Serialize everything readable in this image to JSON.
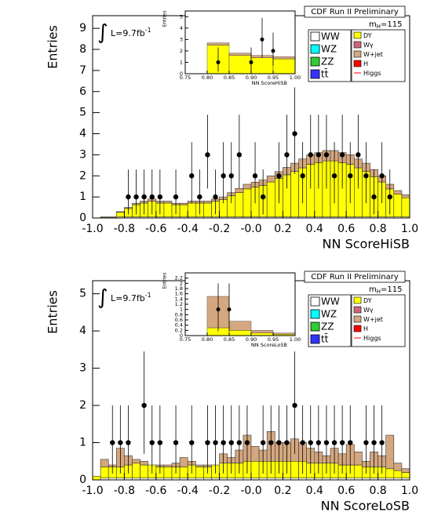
{
  "chart_data": [
    {
      "type": "histogram",
      "title": "CDF Run II Preliminary",
      "mass_label": {
        "base": "m",
        "sub": "H",
        "rest": "=115"
      },
      "lumi_label": {
        "symbol": "∫",
        "base": "L=9.7fb",
        "sup": "-1"
      },
      "x_label": "NN ScoreHiSB",
      "y_label": "Entries",
      "bins": [
        -1,
        -0.95,
        -0.9,
        -0.85,
        -0.8,
        -0.75,
        -0.7,
        -0.65,
        -0.6,
        -0.55,
        -0.5,
        -0.45,
        -0.4,
        -0.35,
        -0.3,
        -0.25,
        -0.2,
        -0.15,
        -0.1,
        -0.05,
        0,
        0.05,
        0.1,
        0.15,
        0.2,
        0.25,
        0.3,
        0.35,
        0.4,
        0.45,
        0.5,
        0.55,
        0.6,
        0.65,
        0.7,
        0.75,
        0.8,
        0.85,
        0.9,
        0.95,
        1
      ],
      "xlim": [
        -1,
        1
      ],
      "ylim": [
        0,
        9.6
      ],
      "xticks": [
        {
          "value": -1,
          "label": "-1.0"
        },
        -0.8,
        -0.6,
        -0.4,
        -0.2,
        {
          "value": 0,
          "label": "-0.0"
        },
        0.2,
        0.4,
        0.6,
        0.8,
        {
          "value": 1,
          "label": "1.0"
        }
      ],
      "yticks": [
        0,
        1,
        2,
        3,
        4,
        5,
        6,
        7,
        8,
        9
      ],
      "series": [
        {
          "name": "WW",
          "color": "#ffffff",
          "values": [
            0,
            0,
            0,
            0.05,
            0.05,
            0.05,
            0.05,
            0.05,
            0.05,
            0.05,
            0.05,
            0.05,
            0.05,
            0.05,
            0.05,
            0.05,
            0.05,
            0.05,
            0.05,
            0.05,
            0.05,
            0.05,
            0.05,
            0.05,
            0.05,
            0.05,
            0.05,
            0.05,
            0.05,
            0.05,
            0.05,
            0.05,
            0.05,
            0.05,
            0.05,
            0.05,
            0.05,
            0.05,
            0.05,
            0.05
          ]
        },
        {
          "name": "WZ",
          "color": "#00ffff"
        },
        {
          "name": "ZZ",
          "color": "#33cc33"
        },
        {
          "name": "tt̄",
          "color": "#3333ff"
        },
        {
          "name": "DY",
          "color": "#ffff00",
          "values": [
            0,
            0.04,
            0.04,
            0.22,
            0.4,
            0.58,
            0.66,
            0.74,
            0.66,
            0.66,
            0.58,
            0.58,
            0.66,
            0.66,
            0.66,
            0.74,
            0.83,
            1.0,
            1.16,
            1.33,
            1.41,
            1.5,
            1.66,
            1.83,
            2.0,
            2.16,
            2.33,
            2.5,
            2.58,
            2.66,
            2.66,
            2.58,
            2.5,
            2.33,
            2.16,
            1.91,
            1.66,
            1.33,
            1.08,
            0.91
          ]
        },
        {
          "name": "Wγ",
          "color": "#cc6677"
        },
        {
          "name": "W+jet",
          "color": "#d4a77f",
          "values": [
            0,
            0.01,
            0.01,
            0.03,
            0.05,
            0.07,
            0.09,
            0.11,
            0.09,
            0.09,
            0.07,
            0.07,
            0.09,
            0.09,
            0.09,
            0.11,
            0.12,
            0.15,
            0.19,
            0.22,
            0.24,
            0.25,
            0.29,
            0.32,
            0.35,
            0.39,
            0.42,
            0.45,
            0.47,
            0.49,
            0.49,
            0.47,
            0.45,
            0.42,
            0.39,
            0.34,
            0.29,
            0.22,
            0.17,
            0.14
          ]
        },
        {
          "name": "H",
          "color": "#ff0000"
        },
        {
          "name": "Higgs",
          "color": "#ff0000",
          "style": "line"
        }
      ],
      "data_points": {
        "x": [
          -0.775,
          -0.725,
          -0.675,
          -0.625,
          -0.575,
          -0.475,
          -0.375,
          -0.325,
          -0.275,
          -0.225,
          -0.175,
          -0.125,
          -0.075,
          0.025,
          0.075,
          0.175,
          0.225,
          0.275,
          0.325,
          0.375,
          0.425,
          0.475,
          0.525,
          0.575,
          0.625,
          0.675,
          0.725,
          0.775,
          0.825,
          0.875
        ],
        "values": [
          1,
          1,
          1,
          1,
          1,
          1,
          2,
          1,
          3,
          1,
          2,
          2,
          3,
          2,
          1,
          2,
          3,
          4,
          2,
          3,
          3,
          3,
          2,
          3,
          2,
          3,
          2,
          1,
          2,
          1
        ],
        "err_low": [
          0.83,
          0.83,
          0.83,
          0.83,
          0.83,
          0.83,
          1.3,
          0.83,
          1.6,
          0.83,
          1.3,
          1.3,
          1.6,
          1.3,
          0.83,
          1.3,
          1.6,
          1.9,
          1.3,
          1.6,
          1.6,
          1.6,
          1.3,
          1.6,
          1.3,
          1.6,
          1.3,
          0.83,
          1.3,
          0.83
        ],
        "err_high": [
          1.3,
          1.3,
          1.3,
          1.3,
          1.3,
          1.3,
          1.6,
          1.3,
          1.9,
          1.3,
          1.6,
          1.6,
          1.9,
          1.6,
          1.3,
          1.6,
          1.9,
          2.2,
          1.6,
          1.9,
          1.9,
          1.9,
          1.6,
          1.9,
          1.6,
          1.9,
          1.6,
          1.3,
          1.6,
          1.3
        ]
      },
      "inset": {
        "x_label": "NN ScoreHiSB",
        "y_label": "Entries",
        "bins": [
          0.75,
          0.8,
          0.85,
          0.9,
          0.95,
          1
        ],
        "xlim": [
          0.75,
          1
        ],
        "ylim": [
          0,
          5.5
        ],
        "xticks": [
          0.75,
          {
            "value": 0.8,
            "label": "0.80"
          },
          0.85,
          {
            "value": 0.9,
            "label": "0.90"
          },
          0.95,
          {
            "value": 1,
            "label": "1.00"
          }
        ],
        "yticks": [
          0,
          1,
          2,
          3,
          4,
          5
        ],
        "series": [
          {
            "color": "#ffff00",
            "values": [
              0,
              2.5,
              1.6,
              1.4,
              1.3
            ]
          },
          {
            "color": "#d4a77f",
            "values": [
              0,
              0.2,
              0.2,
              0.2,
              0.2
            ]
          }
        ],
        "data_points": {
          "x": [
            0.825,
            0.9,
            0.925,
            0.95
          ],
          "values": [
            1,
            1,
            3,
            2
          ],
          "err_low": [
            0.83,
            0.83,
            1.6,
            1.3
          ],
          "err_high": [
            1.3,
            1.3,
            1.9,
            1.6
          ]
        }
      }
    },
    {
      "type": "histogram",
      "title": "CDF Run II Preliminary",
      "mass_label": {
        "base": "m",
        "sub": "H",
        "rest": "=115"
      },
      "lumi_label": {
        "symbol": "∫",
        "base": "L=9.7fb",
        "sup": "-1"
      },
      "x_label": "NN ScoreLoSB",
      "y_label": "Entries",
      "bins": [
        -1,
        -0.95,
        -0.9,
        -0.85,
        -0.8,
        -0.75,
        -0.7,
        -0.65,
        -0.6,
        -0.55,
        -0.5,
        -0.45,
        -0.4,
        -0.35,
        -0.3,
        -0.25,
        -0.2,
        -0.15,
        -0.1,
        -0.05,
        0,
        0.05,
        0.1,
        0.15,
        0.2,
        0.25,
        0.3,
        0.35,
        0.4,
        0.45,
        0.5,
        0.55,
        0.6,
        0.65,
        0.7,
        0.75,
        0.8,
        0.85,
        0.9,
        0.95,
        1
      ],
      "xlim": [
        -1,
        1
      ],
      "ylim": [
        0,
        5.35
      ],
      "xticks": [
        {
          "value": -1,
          "label": "-1.0"
        },
        -0.8,
        -0.6,
        -0.4,
        -0.2,
        {
          "value": 0,
          "label": "-0.0"
        },
        0.2,
        0.4,
        0.6,
        0.8,
        {
          "value": 1,
          "label": "1.0"
        }
      ],
      "yticks": [
        0,
        1,
        2,
        3,
        4,
        5
      ],
      "series": [
        {
          "name": "WW",
          "color": "#ffffff",
          "values": [
            0,
            0.05,
            0.05,
            0.05,
            0.05,
            0.05,
            0.05,
            0.05,
            0.05,
            0.05,
            0.05,
            0.05,
            0.05,
            0.05,
            0.05,
            0.05,
            0.05,
            0.05,
            0.05,
            0.05,
            0.05,
            0.05,
            0.05,
            0.05,
            0.05,
            0.05,
            0.05,
            0.05,
            0.05,
            0.05,
            0.05,
            0.05,
            0.05,
            0.05,
            0.05,
            0.05,
            0.05,
            0.05,
            0.05,
            0.05
          ]
        },
        {
          "name": "WZ",
          "color": "#00ffff"
        },
        {
          "name": "ZZ",
          "color": "#33cc33"
        },
        {
          "name": "tt̄",
          "color": "#3333ff"
        },
        {
          "name": "DY",
          "color": "#ffff00",
          "values": [
            0.1,
            0.3,
            0.3,
            0.3,
            0.35,
            0.4,
            0.35,
            0.35,
            0.3,
            0.3,
            0.3,
            0.3,
            0.35,
            0.3,
            0.3,
            0.35,
            0.4,
            0.4,
            0.4,
            0.45,
            0.45,
            0.45,
            0.45,
            0.45,
            0.45,
            0.45,
            0.45,
            0.4,
            0.4,
            0.4,
            0.4,
            0.35,
            0.35,
            0.35,
            0.3,
            0.3,
            0.3,
            0.25,
            0.2,
            0.15
          ]
        },
        {
          "name": "Wγ",
          "color": "#cc6677"
        },
        {
          "name": "W+jet",
          "color": "#d4a77f",
          "values": [
            0,
            0.2,
            0.05,
            0.5,
            0.25,
            0.1,
            0.1,
            0,
            0.05,
            0.05,
            0.1,
            0.25,
            0.1,
            0.05,
            0.05,
            0,
            0.25,
            0.15,
            0.35,
            0.7,
            0.4,
            0.3,
            0.8,
            0.5,
            0.5,
            0.6,
            0.5,
            0.4,
            0.3,
            0.2,
            0.4,
            0.3,
            0.55,
            0.35,
            0.15,
            0.4,
            0.3,
            0.9,
            0.2,
            0.1
          ]
        },
        {
          "name": "H",
          "color": "#ff0000"
        },
        {
          "name": "Higgs",
          "color": "#ff0000",
          "style": "line"
        }
      ],
      "data_points": {
        "x": [
          -0.875,
          -0.825,
          -0.775,
          -0.675,
          -0.625,
          -0.575,
          -0.475,
          -0.375,
          -0.275,
          -0.225,
          -0.175,
          -0.125,
          -0.075,
          -0.025,
          0.075,
          0.125,
          0.175,
          0.225,
          0.275,
          0.325,
          0.375,
          0.425,
          0.475,
          0.525,
          0.575,
          0.625,
          0.725,
          0.775,
          0.825
        ],
        "values": [
          1,
          1,
          1,
          2,
          1,
          1,
          1,
          1,
          1,
          1,
          1,
          1,
          1,
          1,
          1,
          1,
          1,
          1,
          2,
          1,
          1,
          1,
          1,
          1,
          1,
          1,
          1,
          1,
          1
        ],
        "err_low": [
          0.83,
          0.83,
          0.83,
          1.3,
          0.83,
          0.83,
          0.83,
          0.83,
          0.83,
          0.83,
          0.83,
          0.83,
          0.83,
          0.83,
          0.83,
          0.83,
          0.83,
          0.83,
          1.3,
          0.83,
          0.83,
          0.83,
          0.83,
          0.83,
          0.83,
          0.83,
          0.83,
          0.83,
          0.83
        ],
        "err_high": [
          1,
          1,
          1,
          1.45,
          1,
          1,
          1,
          1,
          1,
          1,
          1,
          1,
          1,
          1,
          1,
          1,
          1,
          1,
          1.45,
          1,
          1,
          1,
          1,
          1,
          1,
          1,
          1,
          1,
          1
        ]
      },
      "inset": {
        "x_label": "NN ScoreLoSB",
        "y_label": "Entries",
        "bins": [
          0.75,
          0.8,
          0.85,
          0.9,
          0.95,
          1
        ],
        "xlim": [
          0.75,
          1
        ],
        "ylim": [
          0,
          2.4
        ],
        "xticks": [
          0.75,
          {
            "value": 0.8,
            "label": "0.80"
          },
          0.85,
          {
            "value": 0.9,
            "label": "0.90"
          },
          0.95,
          {
            "value": 1,
            "label": "1.00"
          }
        ],
        "yticks": [
          0,
          0.2,
          0.4,
          0.6,
          0.8,
          1,
          1.2,
          1.4,
          1.6,
          1.8,
          2,
          2.2
        ],
        "series": [
          {
            "color": "#ffff00",
            "values": [
              0,
              0.3,
              0.2,
              0.1,
              0.05
            ]
          },
          {
            "color": "#d4a77f",
            "values": [
              0,
              1.2,
              0.35,
              0.1,
              0.05
            ]
          }
        ],
        "data_points": {
          "x": [
            0.825,
            0.85
          ],
          "values": [
            1,
            1
          ],
          "err_low": [
            0.83,
            0.83
          ],
          "err_high": [
            1,
            1
          ]
        }
      }
    }
  ]
}
